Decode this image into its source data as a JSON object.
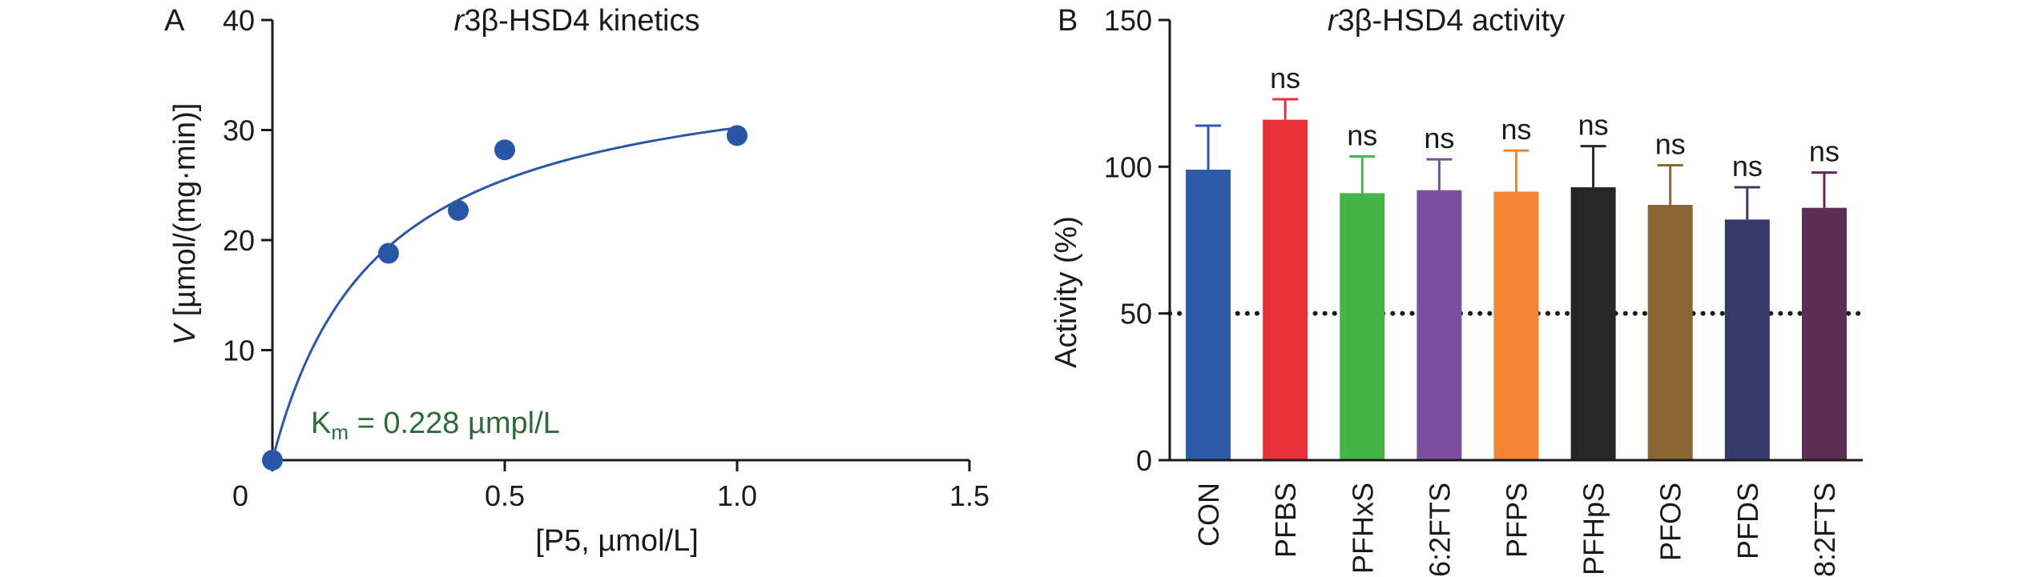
{
  "chart_data": [
    {
      "type": "scatter",
      "panel_label": "A",
      "title_italic": "r",
      "title_rest": "3β-HSD4 kinetics",
      "xlabel": "[P5, µmol/L]",
      "ylabel_italic": "V",
      "ylabel_rest": " [µmol/(mg·min)]",
      "xlim": [
        0,
        1.5
      ],
      "ylim": [
        0,
        40
      ],
      "xticks": [
        0,
        0.5,
        1.0,
        1.5
      ],
      "xtick_labels": [
        "0",
        "0.5",
        "1.0",
        "1.5"
      ],
      "yticks": [
        10,
        20,
        30,
        40
      ],
      "ytick_labels": [
        "10",
        "20",
        "30",
        "40"
      ],
      "points": [
        {
          "x": 0,
          "y": 0
        },
        {
          "x": 0.25,
          "y": 18.8
        },
        {
          "x": 0.4,
          "y": 22.7
        },
        {
          "x": 0.5,
          "y": 28.2
        },
        {
          "x": 1.0,
          "y": 29.5
        }
      ],
      "fit": {
        "model": "michaelis-menten",
        "vmax": 37.1,
        "km": 0.228
      },
      "annotation_main": "K",
      "annotation_sub": "m",
      "annotation_rest": " = 0.228 µmpl/L",
      "point_color": "#2a56a8",
      "fit_color": "#2a56a8",
      "annotation_color": "#2e6b3a"
    },
    {
      "type": "bar",
      "panel_label": "B",
      "title_italic": "r",
      "title_rest": "3β-HSD4 activity",
      "ylabel": "Activity (%)",
      "ylim": [
        0,
        150
      ],
      "yticks": [
        0,
        50,
        100,
        150
      ],
      "ytick_labels": [
        "0",
        "50",
        "100",
        "150"
      ],
      "reference_line": 50,
      "categories": [
        "CON",
        "PFBS",
        "PFHxS",
        "6:2FTS",
        "PFPS",
        "PFHpS",
        "PFOS",
        "PFDS",
        "8:2FTS"
      ],
      "values": [
        99,
        116,
        91,
        92,
        91.5,
        93,
        87,
        82,
        86
      ],
      "errors": [
        15,
        7,
        12.5,
        10.5,
        14,
        14,
        13.5,
        11,
        12
      ],
      "significance": [
        "",
        "ns",
        "ns",
        "ns",
        "ns",
        "ns",
        "ns",
        "ns",
        "ns"
      ],
      "colors": [
        "#2b5aa8",
        "#e8303a",
        "#45b54a",
        "#7b4fa0",
        "#f28533",
        "#262626",
        "#8a6633",
        "#363a6a",
        "#5c2d55"
      ]
    }
  ]
}
